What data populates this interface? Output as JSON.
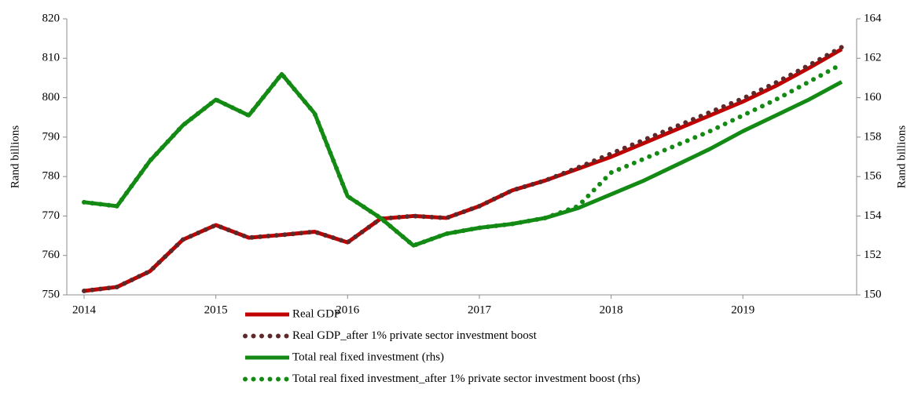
{
  "chart_data": {
    "type": "line",
    "y_label": "Rand billions",
    "y2_label": "Rand billions",
    "categories": [
      "2014",
      null,
      null,
      null,
      "2015",
      null,
      null,
      null,
      "2016",
      null,
      null,
      null,
      "2017",
      null,
      null,
      null,
      "2018",
      null,
      null,
      null,
      "2019",
      null,
      null,
      null
    ],
    "ylim": [
      750,
      820
    ],
    "yticks": [
      750,
      760,
      770,
      780,
      790,
      800,
      810,
      820
    ],
    "y2lim": [
      150,
      164
    ],
    "y2ticks": [
      150,
      152,
      154,
      156,
      158,
      160,
      162,
      164
    ],
    "grid": false,
    "legend": "bottom",
    "series": [
      {
        "name": "Real GDP",
        "color": "#c00000",
        "style": "solid",
        "values": [
          751,
          752,
          756,
          764,
          767.7,
          764.5,
          765.2,
          766,
          763.3,
          769.3,
          770,
          769.5,
          772.5,
          776.5,
          779,
          782,
          785,
          788.5,
          792,
          795.5,
          799,
          803,
          807.5,
          812.3
        ]
      },
      {
        "name": "Real GDP_after 1% private sector investment boost",
        "color": "#5c2a2a",
        "style": "dotted",
        "values": [
          751,
          752,
          756,
          764,
          767.7,
          764.5,
          765.2,
          766,
          763.3,
          769.3,
          770,
          769.5,
          772.5,
          776.5,
          779,
          782.3,
          785.8,
          789.3,
          792.8,
          796.3,
          799.8,
          803.8,
          808.2,
          812.8
        ]
      },
      {
        "name": "Total real fixed investment (rhs)",
        "color": "#138a13",
        "style": "solid",
        "axis": "y2",
        "values": [
          154.7,
          154.5,
          156.8,
          158.6,
          159.9,
          159.1,
          161.2,
          159.2,
          155,
          153.9,
          152.5,
          153.1,
          153.4,
          153.6,
          153.9,
          154.4,
          155.1,
          155.8,
          156.6,
          157.4,
          158.3,
          159.1,
          159.9,
          160.8
        ]
      },
      {
        "name": "Total real fixed investment_after 1% private sector investment boost (rhs)",
        "color": "#138a13",
        "style": "dotted",
        "axis": "y2",
        "values": [
          154.7,
          154.5,
          156.8,
          158.6,
          159.9,
          159.1,
          161.2,
          159.2,
          155,
          153.9,
          152.5,
          153.1,
          153.4,
          153.6,
          153.9,
          154.5,
          156.2,
          156.9,
          157.6,
          158.3,
          159.1,
          159.9,
          160.8,
          161.7
        ]
      }
    ]
  }
}
